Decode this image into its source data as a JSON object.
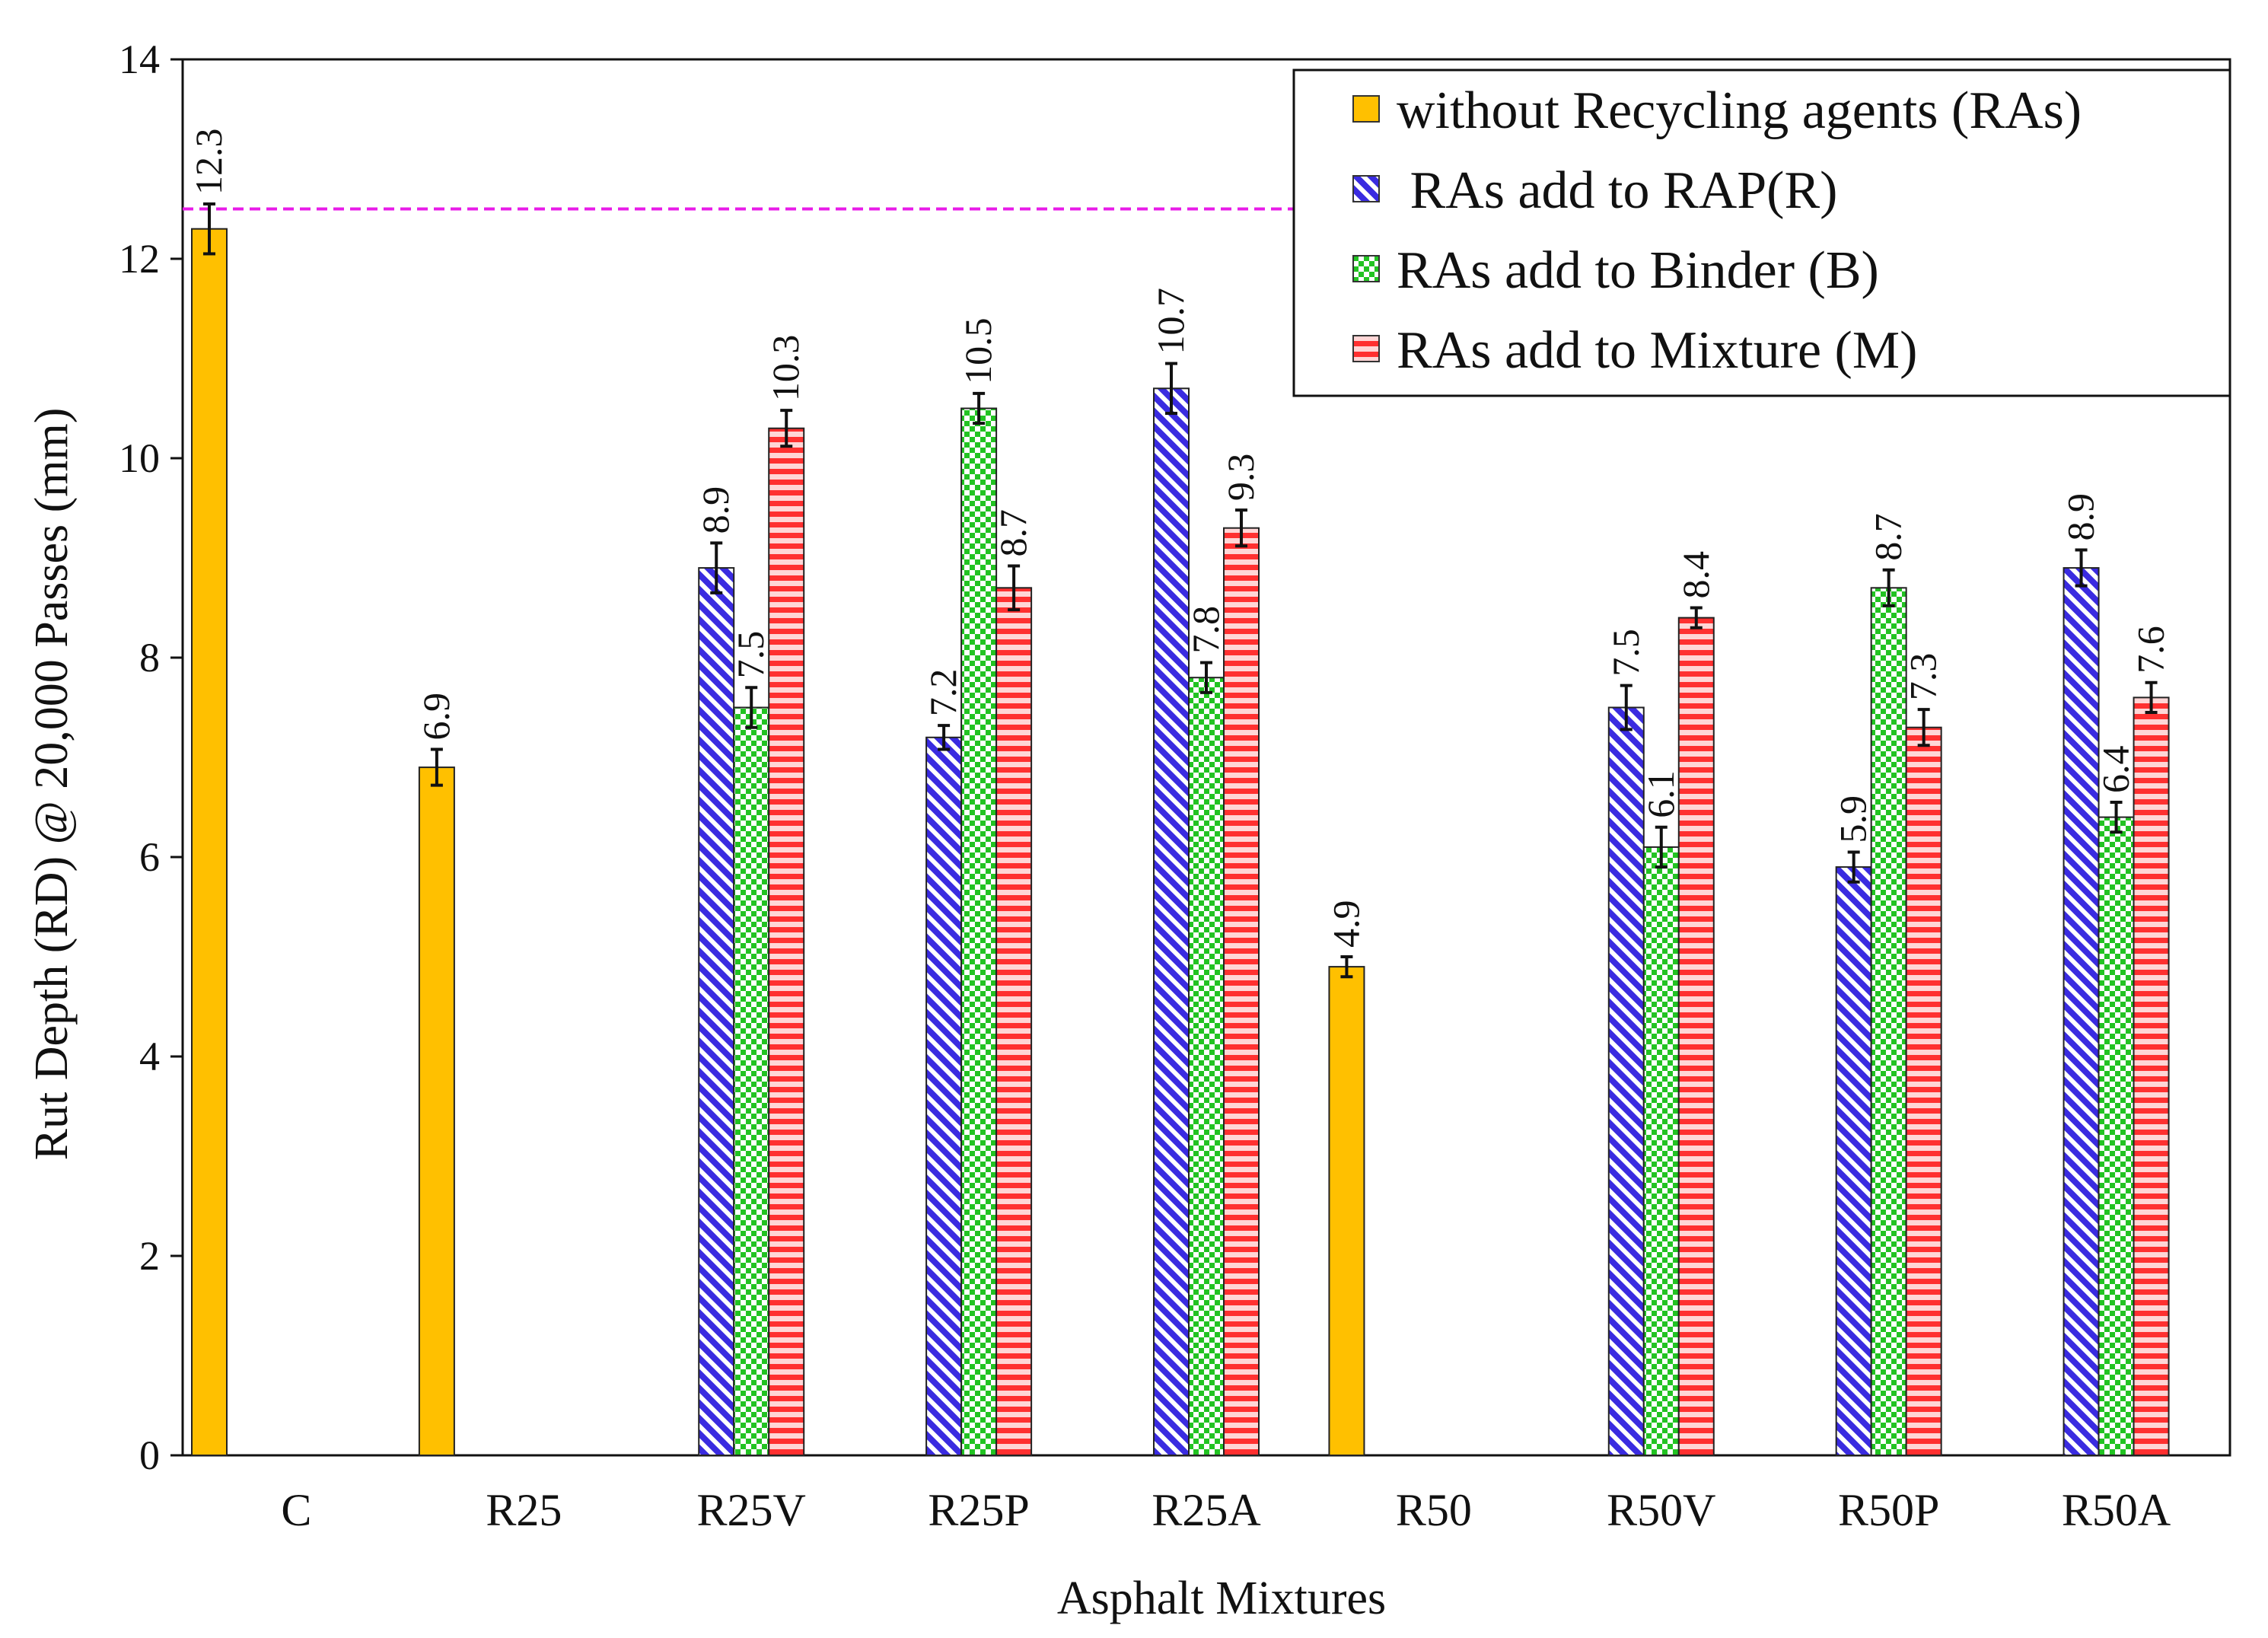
{
  "chart_data": {
    "type": "bar",
    "xlabel": "Asphalt Mixtures",
    "ylabel": "Rut Depth (RD) @ 20,000 Passes (mm)",
    "ylim": [
      0,
      14
    ],
    "yticks": [
      0,
      2,
      4,
      6,
      8,
      10,
      12,
      14
    ],
    "grid": false,
    "legend_position": "top-right",
    "reference_line": {
      "y": 12.5,
      "color": "#e81ce8",
      "style": "dashed"
    },
    "categories": [
      "C",
      "R25",
      "R25V",
      "R25P",
      "R25A",
      "R50",
      "R50V",
      "R50P",
      "R50A"
    ],
    "series": [
      {
        "name": "without Recycling agents (RAs)",
        "color": "#ffc000",
        "pattern": "solid",
        "values": [
          12.3,
          6.9,
          null,
          null,
          null,
          4.9,
          null,
          null,
          null
        ],
        "errors": [
          0.25,
          0.18,
          null,
          null,
          null,
          0.1,
          null,
          null,
          null
        ]
      },
      {
        "name": " RAs add to RAP(R)",
        "color": "#3a2be0",
        "pattern": "diagonal",
        "values": [
          null,
          null,
          8.9,
          7.2,
          10.7,
          null,
          7.5,
          5.9,
          8.9
        ],
        "errors": [
          null,
          null,
          0.25,
          0.12,
          0.25,
          null,
          0.22,
          0.15,
          0.18
        ]
      },
      {
        "name": "RAs add to Binder (B)",
        "color": "#22c322",
        "pattern": "checker",
        "values": [
          null,
          null,
          7.5,
          10.5,
          7.8,
          null,
          6.1,
          8.7,
          6.4
        ],
        "errors": [
          null,
          null,
          0.2,
          0.15,
          0.15,
          null,
          0.2,
          0.18,
          0.15
        ]
      },
      {
        "name": "RAs add to Mixture (M)",
        "color": "#ff3030",
        "pattern": "horizontal",
        "values": [
          null,
          null,
          10.3,
          8.7,
          9.3,
          null,
          8.4,
          7.3,
          7.6
        ],
        "errors": [
          null,
          null,
          0.18,
          0.22,
          0.18,
          null,
          0.1,
          0.18,
          0.15
        ]
      }
    ]
  }
}
